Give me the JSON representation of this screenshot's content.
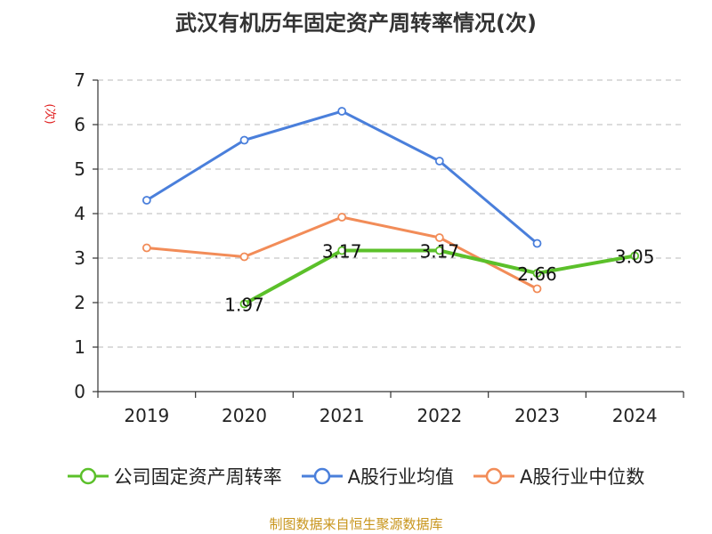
{
  "title": "武汉有机历年固定资产周转率情况(次)",
  "footer": "制图数据来自恒生聚源数据库",
  "chart_data": {
    "type": "line",
    "title": "武汉有机历年固定资产周转率情况(次)",
    "ylabel": "(次)",
    "xlabel": "",
    "categories": [
      "2019",
      "2020",
      "2021",
      "2022",
      "2023",
      "2024"
    ],
    "ylim": [
      0,
      7
    ],
    "yticks": [
      0,
      1,
      2,
      3,
      4,
      5,
      6,
      7
    ],
    "grid": true,
    "legend_position": "bottom",
    "series": [
      {
        "name": "公司固定资产周转率",
        "color": "#5bc02a",
        "values": [
          null,
          1.97,
          3.17,
          3.17,
          2.66,
          3.05
        ],
        "labels": [
          null,
          "1.97",
          "3.17",
          "3.17",
          "2.66",
          "3.05"
        ]
      },
      {
        "name": "A股行业均值",
        "color": "#4a7fdb",
        "values": [
          4.3,
          5.65,
          6.3,
          5.18,
          3.33,
          null
        ]
      },
      {
        "name": "A股行业中位数",
        "color": "#f28c58",
        "values": [
          3.23,
          3.03,
          3.92,
          3.46,
          2.31,
          null
        ]
      }
    ]
  }
}
